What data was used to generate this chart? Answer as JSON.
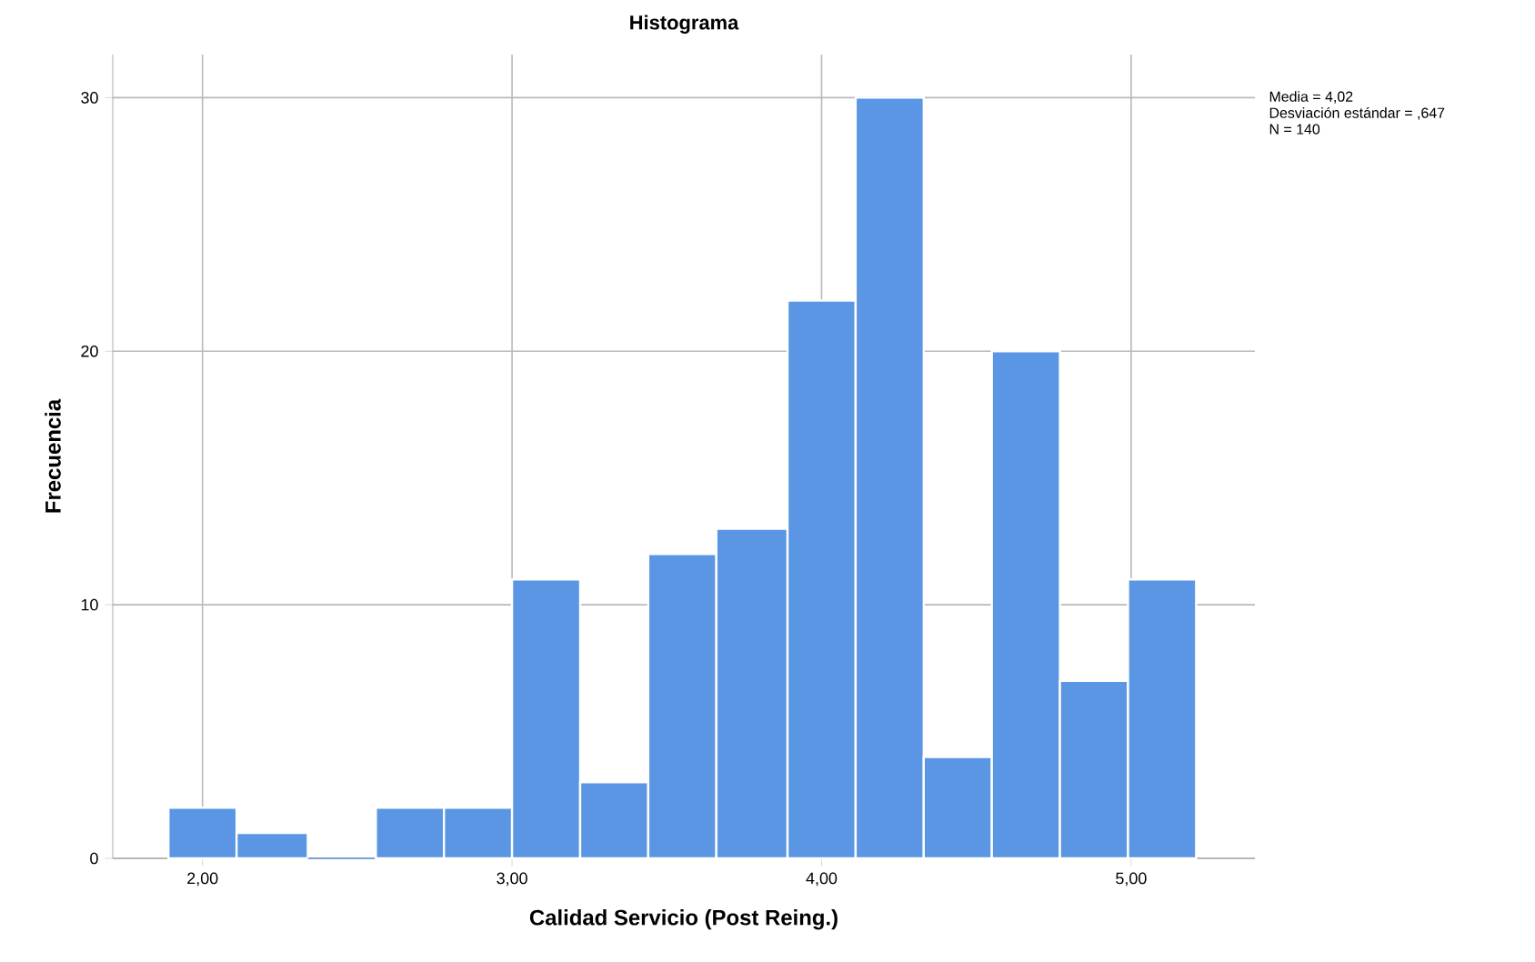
{
  "chart_data": {
    "type": "histogram",
    "title": "Histograma",
    "xlabel": "Calidad Servicio (Post Reing.)",
    "ylabel": "Frecuencia",
    "bins": [
      1.89,
      2.11,
      2.34,
      2.56,
      2.78,
      3.0,
      3.22,
      3.44,
      3.66,
      3.89,
      4.11,
      4.33,
      4.55,
      4.77,
      4.99,
      5.21
    ],
    "values": [
      2,
      1,
      0,
      2,
      2,
      11,
      3,
      12,
      13,
      22,
      30,
      4,
      20,
      7,
      11
    ],
    "color": "#5a96e3",
    "xlim": [
      1.71,
      5.4
    ],
    "ylim": [
      0,
      31.7
    ],
    "xticks": [
      {
        "value": 2,
        "label": "2,00"
      },
      {
        "value": 3,
        "label": "3,00"
      },
      {
        "value": 4,
        "label": "4,00"
      },
      {
        "value": 5,
        "label": "5,00"
      }
    ],
    "yticks": [
      0,
      10,
      20,
      30
    ],
    "grid": true,
    "annotations": [
      "Media = 4,02",
      "Desviación estándar = ,647",
      "N = 140"
    ]
  }
}
